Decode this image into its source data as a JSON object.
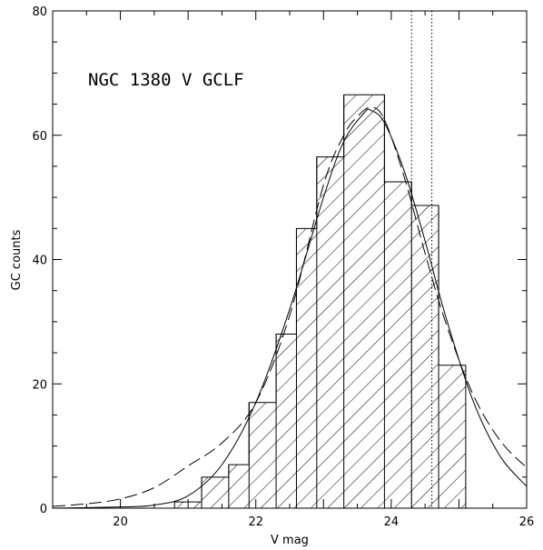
{
  "chart_data": {
    "type": "bar",
    "title": "NGC 1380 V GCLF",
    "xlabel": "V mag",
    "ylabel": "GC counts",
    "xlim": [
      19,
      26
    ],
    "ylim": [
      0,
      80
    ],
    "x_ticks": [
      20,
      22,
      24,
      26
    ],
    "y_ticks": [
      0,
      20,
      40,
      60,
      80
    ],
    "grid": false,
    "histogram": {
      "bin_edges": [
        20.8,
        21.2,
        21.6,
        21.9,
        22.3,
        22.6,
        22.9,
        23.3,
        23.9,
        24.3,
        24.7,
        25.1
      ],
      "counts": [
        1,
        5,
        7,
        17,
        28,
        45,
        56.5,
        66.5,
        52.5,
        48.7,
        23
      ],
      "fill": "hatched"
    },
    "curves": [
      {
        "style": "solid",
        "x": [
          19,
          20,
          20.5,
          21,
          21.5,
          22,
          22.5,
          23,
          23.3,
          23.6,
          23.7,
          23.9,
          24.2,
          24.5,
          24.8,
          25.2,
          25.6,
          26
        ],
        "y": [
          0,
          0.2,
          0.5,
          2,
          7,
          17,
          32,
          50,
          59,
          63.6,
          64,
          62,
          54,
          43,
          31,
          17.5,
          8.5,
          3.5
        ]
      },
      {
        "style": "dashed",
        "x": [
          19,
          19.5,
          20,
          20.5,
          21,
          21.5,
          22,
          22.5,
          23,
          23.3,
          23.5,
          23.7,
          23.9,
          24.2,
          24.5,
          24.8,
          25.2,
          25.6,
          26
        ],
        "y": [
          0.3,
          0.7,
          1.5,
          3.3,
          6.8,
          10.5,
          17,
          31,
          52,
          60,
          63,
          64.5,
          62.5,
          53,
          41,
          30,
          18.5,
          11,
          6.5
        ]
      }
    ],
    "vertical_lines": [
      {
        "x": 24.3,
        "style": "dotted"
      },
      {
        "x": 24.6,
        "style": "dotted"
      }
    ]
  }
}
